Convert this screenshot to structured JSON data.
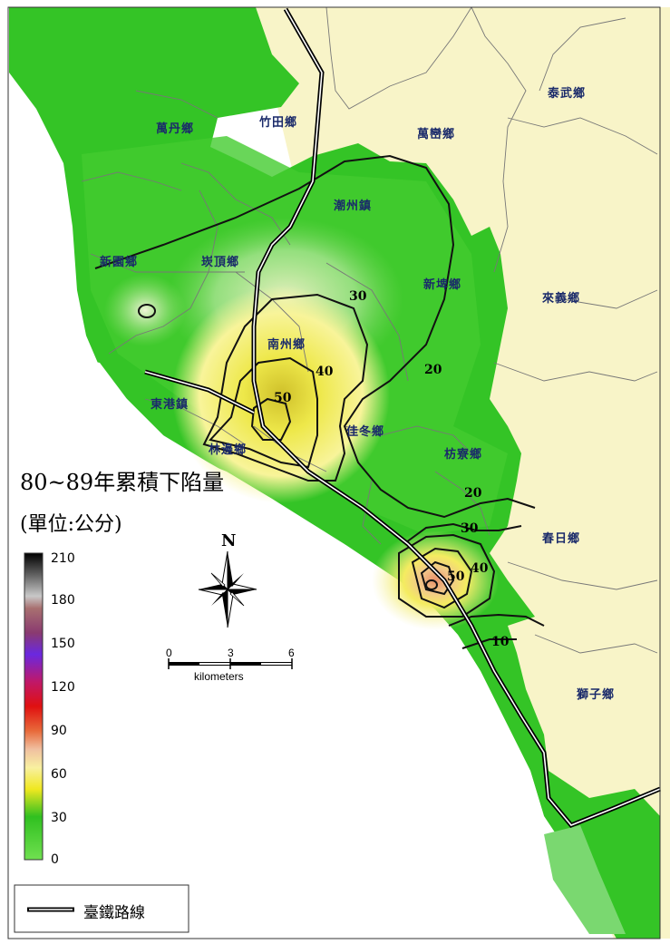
{
  "title": "80~89年累積下陷量",
  "unit": "(單位:公分)",
  "legend": {
    "ticks": [
      "210",
      "180",
      "150",
      "120",
      "90",
      "60",
      "30",
      "0"
    ],
    "colors": [
      "#000000",
      "#b8b8b8",
      "#b24a4a",
      "#7a28d6",
      "#e01010",
      "#e88a2c",
      "#f4e02a",
      "#38c228",
      "#5cdc3c"
    ]
  },
  "towns": [
    "萬丹鄉",
    "竹田鄉",
    "萬巒鄉",
    "泰武鄉",
    "潮州鎮",
    "新園鄉",
    "崁頂鄉",
    "新埤鄉",
    "來義鄉",
    "南州鄉",
    "東港鎮",
    "佳冬鄉",
    "林邊鄉",
    "枋寮鄉",
    "春日鄉",
    "獅子鄉"
  ],
  "contours": [
    "30",
    "40",
    "50",
    "20",
    "20",
    "30",
    "50",
    "40",
    "10"
  ],
  "north": "N",
  "scale": {
    "ticks": [
      "0",
      "3",
      "6"
    ],
    "unit": "kilometers"
  },
  "railway_label": "臺鐵路線",
  "colors": {
    "sea": "#ffffff",
    "land_out": "#f8f4c8",
    "low": "#3cc828",
    "mid": "#f4e84a",
    "high": "#e8a080",
    "rail": "#000000"
  }
}
